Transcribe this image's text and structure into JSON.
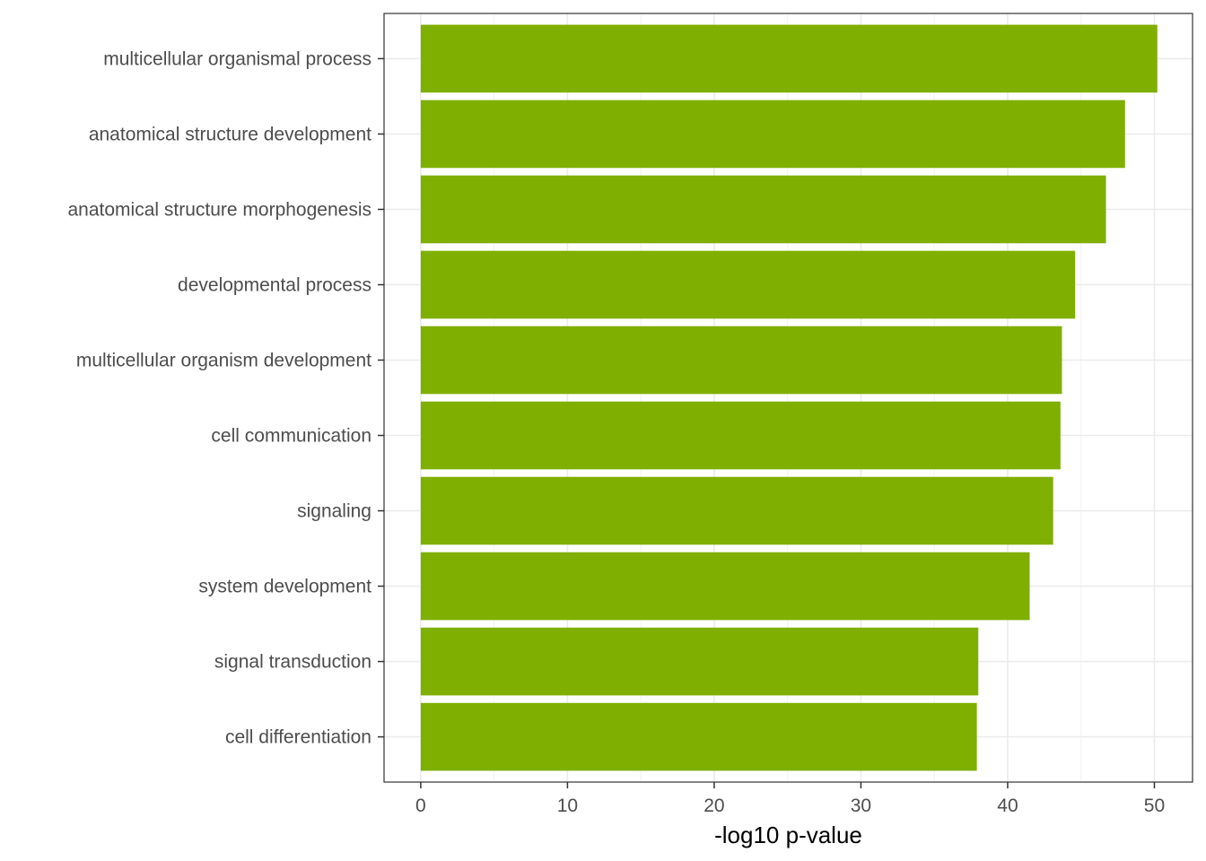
{
  "chart_data": {
    "type": "bar",
    "orientation": "horizontal",
    "categories": [
      "multicellular organismal process",
      "anatomical structure development",
      "anatomical structure morphogenesis",
      "developmental process",
      "multicellular organism development",
      "cell communication",
      "signaling",
      "system development",
      "signal transduction",
      "cell differentiation"
    ],
    "values": [
      50.2,
      48.0,
      46.7,
      44.6,
      43.7,
      43.6,
      43.1,
      41.5,
      38.0,
      37.9
    ],
    "xlabel": "-log10 p-value",
    "ylabel": "",
    "title": "",
    "xlim": [
      -2.5,
      52.6
    ],
    "x_ticks": [
      0,
      10,
      20,
      30,
      40,
      50
    ],
    "bar_color": "#7FAF00",
    "grid": true,
    "legend": "none"
  }
}
